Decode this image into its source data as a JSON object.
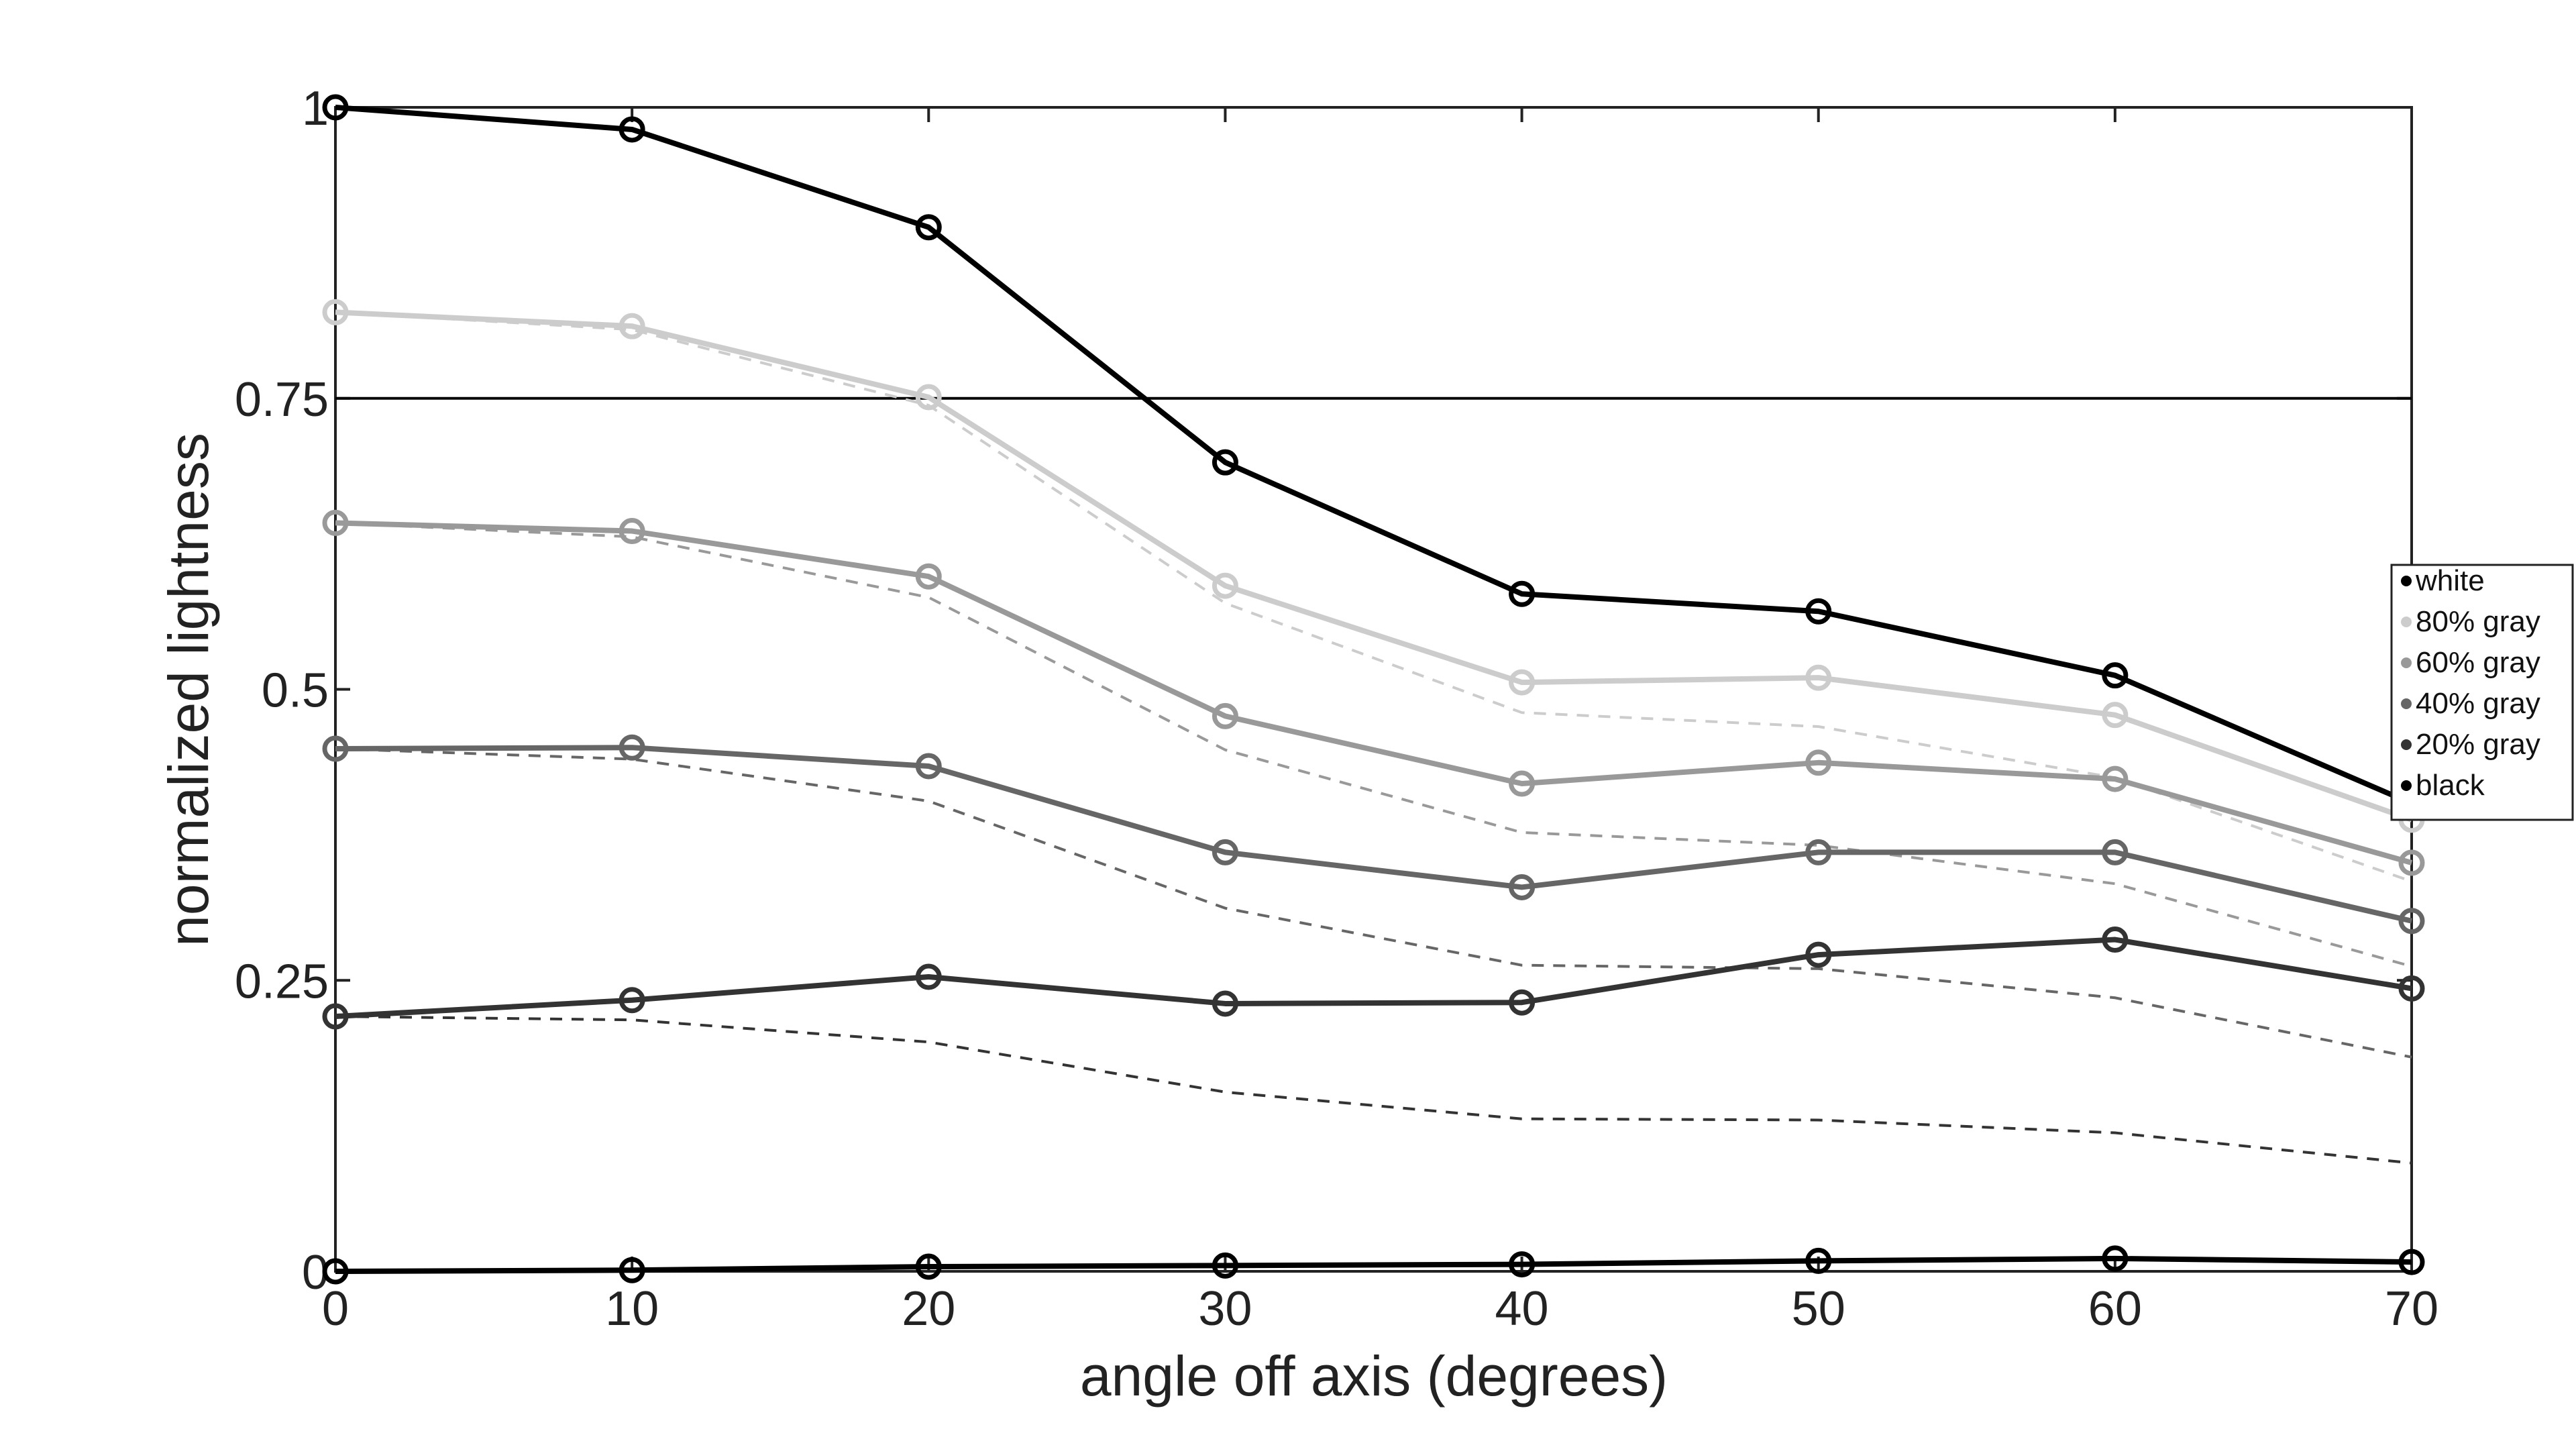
{
  "chart_data": {
    "type": "line",
    "xlabel": "angle off axis (degrees)",
    "ylabel": "normalized lightness",
    "xlim": [
      0,
      70
    ],
    "ylim": [
      0,
      1
    ],
    "x": [
      0,
      10,
      20,
      30,
      40,
      50,
      60,
      70
    ],
    "xticks": [
      "0",
      "10",
      "20",
      "30",
      "40",
      "50",
      "60",
      "70"
    ],
    "yticks": [
      {
        "value": 0,
        "label": "0"
      },
      {
        "value": 0.25,
        "label": "0.25"
      },
      {
        "value": 0.5,
        "label": "0.5"
      },
      {
        "value": 0.75,
        "label": "0.75"
      },
      {
        "value": 1,
        "label": "1"
      }
    ],
    "grid": false,
    "legend_position": "right",
    "reference_lines": [
      {
        "y": 0.75,
        "color": "#000000"
      }
    ],
    "series": [
      {
        "name": "white",
        "color": "#000000",
        "marker": "circle",
        "values": [
          1.0,
          0.981,
          0.897,
          0.695,
          0.582,
          0.567,
          0.512,
          0.402
        ]
      },
      {
        "name": "80% gray",
        "color": "#cccccc",
        "marker": "circle",
        "values": [
          0.824,
          0.812,
          0.751,
          0.589,
          0.506,
          0.51,
          0.478,
          0.388
        ]
      },
      {
        "name": "60% gray",
        "color": "#999999",
        "marker": "circle",
        "values": [
          0.643,
          0.636,
          0.597,
          0.477,
          0.419,
          0.437,
          0.423,
          0.351
        ]
      },
      {
        "name": "40% gray",
        "color": "#666666",
        "marker": "circle",
        "values": [
          0.449,
          0.45,
          0.434,
          0.36,
          0.33,
          0.36,
          0.36,
          0.301
        ]
      },
      {
        "name": "20% gray",
        "color": "#333333",
        "marker": "circle",
        "values": [
          0.219,
          0.233,
          0.253,
          0.23,
          0.231,
          0.272,
          0.285,
          0.243
        ]
      },
      {
        "name": "black",
        "color": "#000000",
        "marker": "circle",
        "values": [
          0.0,
          0.001,
          0.004,
          0.005,
          0.006,
          0.009,
          0.011,
          0.008
        ]
      }
    ],
    "reference_series": [
      {
        "color": "#cccccc",
        "style": "dashed",
        "values": [
          0.824,
          0.809,
          0.744,
          0.574,
          0.48,
          0.468,
          0.424,
          0.335
        ]
      },
      {
        "color": "#999999",
        "style": "dashed",
        "values": [
          0.643,
          0.631,
          0.579,
          0.448,
          0.377,
          0.366,
          0.333,
          0.262
        ]
      },
      {
        "color": "#666666",
        "style": "dashed",
        "values": [
          0.449,
          0.44,
          0.404,
          0.312,
          0.263,
          0.26,
          0.235,
          0.184
        ]
      },
      {
        "color": "#333333",
        "style": "dashed",
        "values": [
          0.219,
          0.216,
          0.197,
          0.154,
          0.131,
          0.13,
          0.119,
          0.093
        ]
      }
    ]
  }
}
